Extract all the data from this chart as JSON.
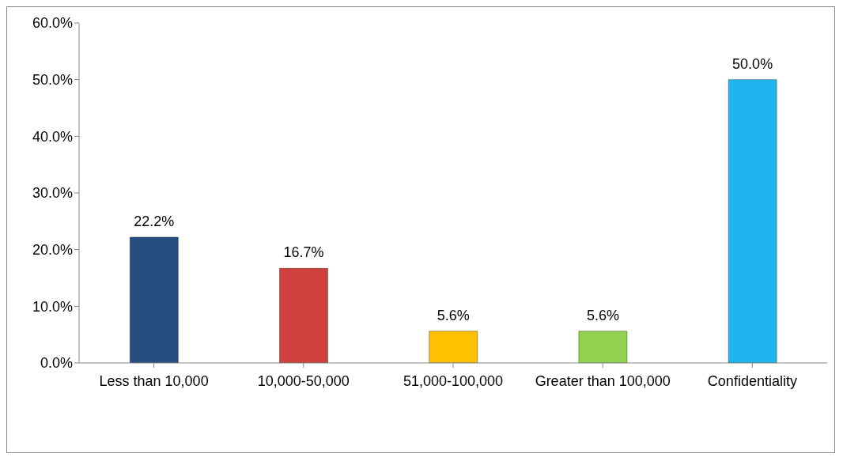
{
  "chart_data": {
    "type": "bar",
    "categories": [
      "Less than 10,000",
      "10,000-50,000",
      "51,000-100,000",
      "Greater than 100,000",
      "Confidentiality"
    ],
    "values": [
      22.2,
      16.7,
      5.6,
      5.6,
      50.0
    ],
    "colors": [
      "#264d80",
      "#d0413e",
      "#ffc000",
      "#92d050",
      "#1fb5ee"
    ],
    "value_labels": [
      "22.2%",
      "16.7%",
      "5.6%",
      "5.6%",
      "50.0%"
    ],
    "ylim": [
      0,
      60
    ],
    "yticks": [
      {
        "value": 0,
        "label": "0.0%"
      },
      {
        "value": 10,
        "label": "10.0%"
      },
      {
        "value": 20,
        "label": "20.0%"
      },
      {
        "value": 30,
        "label": "30.0%"
      },
      {
        "value": 40,
        "label": "40.0%"
      },
      {
        "value": 50,
        "label": "50.0%"
      },
      {
        "value": 60,
        "label": "60.0%"
      }
    ],
    "grid": false,
    "legend": false
  }
}
